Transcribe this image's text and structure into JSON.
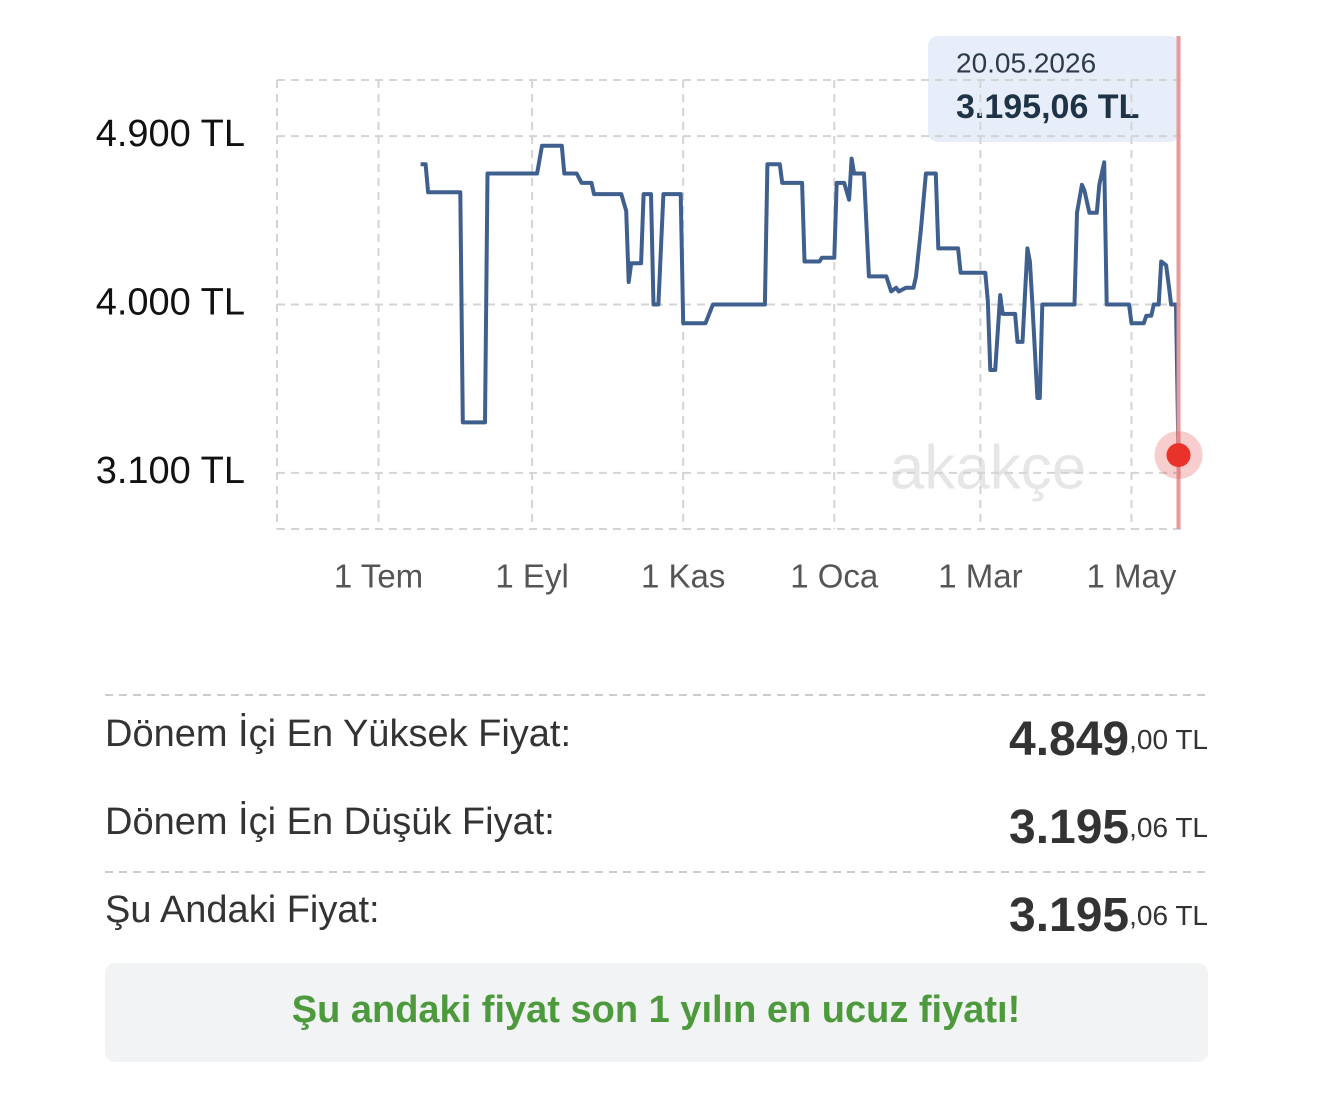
{
  "chart_data": {
    "type": "line",
    "color": "#3f5f8f",
    "x": [
      17,
      19,
      20,
      33,
      34,
      43,
      44,
      64,
      66,
      74,
      75,
      80,
      82,
      86,
      87,
      98,
      100,
      101,
      102,
      106,
      107,
      110,
      111,
      113,
      115,
      122,
      123,
      132,
      135,
      156,
      157,
      162,
      163,
      171,
      172,
      178,
      179,
      184,
      185,
      188,
      190,
      191,
      192,
      196,
      198,
      205,
      207,
      209,
      210,
      213,
      216,
      217,
      219,
      221,
      225,
      226,
      234,
      235,
      245,
      246,
      247,
      249,
      251,
      252,
      257,
      258,
      260,
      262,
      263,
      264,
      266,
      267,
      268,
      281,
      282,
      284,
      285,
      287,
      290,
      291,
      293,
      294,
      303,
      304,
      309,
      310,
      312,
      313,
      315,
      316,
      318,
      319,
      320,
      322,
      323
    ],
    "values": [
      4750,
      4750,
      4600,
      4600,
      3370,
      3370,
      4700,
      4700,
      4849,
      4849,
      4700,
      4700,
      4650,
      4650,
      4590,
      4590,
      4500,
      4120,
      4220,
      4220,
      4590,
      4590,
      4000,
      4000,
      4590,
      4590,
      3900,
      3900,
      4000,
      4000,
      4750,
      4750,
      4650,
      4650,
      4230,
      4230,
      4250,
      4250,
      4650,
      4650,
      4560,
      4780,
      4700,
      4700,
      4150,
      4150,
      4070,
      4090,
      4070,
      4090,
      4090,
      4150,
      4400,
      4700,
      4700,
      4300,
      4300,
      4170,
      4170,
      4020,
      3650,
      3650,
      4050,
      3950,
      3950,
      3800,
      3800,
      4300,
      4230,
      4000,
      3500,
      3500,
      4000,
      4000,
      4490,
      4640,
      4610,
      4490,
      4490,
      4640,
      4760,
      4000,
      4000,
      3900,
      3900,
      3940,
      3940,
      4000,
      4000,
      4230,
      4210,
      4110,
      4000,
      4000,
      3195.06
    ],
    "xlim": [
      -41,
      324
    ],
    "xticks": [
      {
        "value": 0,
        "label": "1 Tem"
      },
      {
        "value": 62,
        "label": "1 Eyl"
      },
      {
        "value": 123,
        "label": "1 Kas"
      },
      {
        "value": 184,
        "label": "1 Oca"
      },
      {
        "value": 243,
        "label": "1 Mar"
      },
      {
        "value": 304,
        "label": "1 May"
      }
    ],
    "ylim": [
      2800,
      5200
    ],
    "yticks": [
      {
        "value": 4900,
        "label": "4.900 TL"
      },
      {
        "value": 4000,
        "label": "4.000 TL"
      },
      {
        "value": 3100,
        "label": "3.100 TL"
      }
    ],
    "grid": true,
    "tooltip": {
      "date": "20.05.2026",
      "value": "3.195,06 TL"
    },
    "watermark": "akakçe"
  },
  "stats": [
    {
      "label": "Dönem İçi En Yüksek Fiyat:",
      "main": "4.849",
      "fraction": ",00 TL"
    },
    {
      "label": "Dönem İçi En Düşük Fiyat:",
      "main": "3.195",
      "fraction": ",06 TL"
    },
    {
      "label": "Şu Andaki Fiyat:",
      "main": "3.195",
      "fraction": ",06 TL"
    }
  ],
  "banner": "Şu andaki fiyat son 1 yılın en ucuz fiyatı!"
}
